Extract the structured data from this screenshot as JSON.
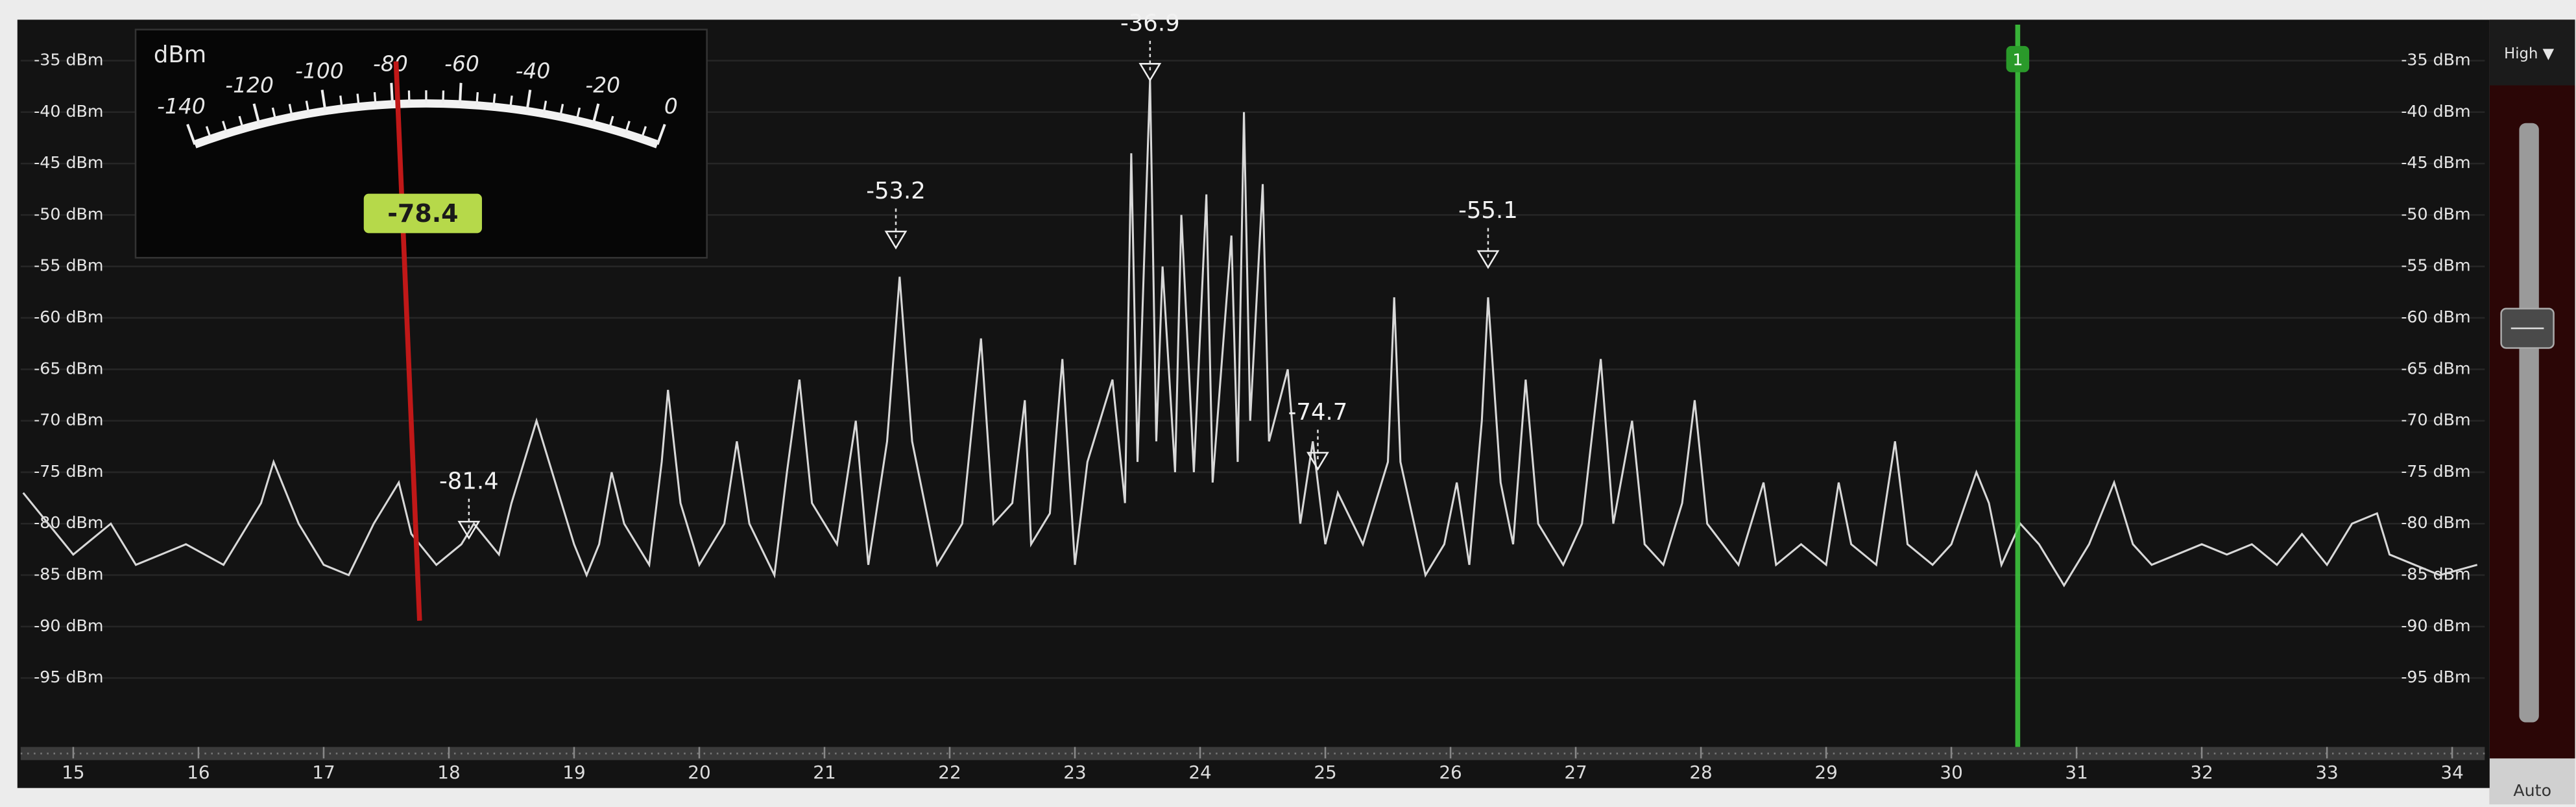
{
  "chart_data": {
    "type": "line",
    "xlim": [
      14.58,
      34.26
    ],
    "ylim": [
      -101.7,
      -31.5
    ],
    "xticks": [
      15,
      16,
      17,
      18,
      19,
      20,
      21,
      22,
      23,
      24,
      25,
      26,
      27,
      28,
      29,
      30,
      31,
      32,
      33,
      34
    ],
    "yticks": [
      {
        "value": -35,
        "label": "-35 dBm"
      },
      {
        "value": -40,
        "label": "-40 dBm"
      },
      {
        "value": -45,
        "label": "-45 dBm"
      },
      {
        "value": -50,
        "label": "-50 dBm"
      },
      {
        "value": -55,
        "label": "-55 dBm"
      },
      {
        "value": -60,
        "label": "-60 dBm"
      },
      {
        "value": -65,
        "label": "-65 dBm"
      },
      {
        "value": -70,
        "label": "-70 dBm"
      },
      {
        "value": -75,
        "label": "-75 dBm"
      },
      {
        "value": -80,
        "label": "-80 dBm"
      },
      {
        "value": -85,
        "label": "-85 dBm"
      },
      {
        "value": -90,
        "label": "-90 dBm"
      },
      {
        "value": -95,
        "label": "-95 dBm"
      }
    ],
    "grid": true,
    "color": "#d8d8d8",
    "x": [
      14.6,
      15,
      15.3,
      15.5,
      15.9,
      16.2,
      16.5,
      16.6,
      16.8,
      17,
      17.2,
      17.4,
      17.5,
      17.6,
      17.7,
      17.9,
      18.1,
      18.2,
      18.4,
      18.5,
      18.7,
      18.8,
      19,
      19.1,
      19.2,
      19.3,
      19.4,
      19.6,
      19.7,
      19.75,
      19.85,
      20,
      20.2,
      20.3,
      20.4,
      20.6,
      20.7,
      20.8,
      20.9,
      21.1,
      21.25,
      21.35,
      21.5,
      21.6,
      21.7,
      21.9,
      22.1,
      22.25,
      22.35,
      22.5,
      22.6,
      22.65,
      22.8,
      22.9,
      23,
      23.1,
      23.2,
      23.3,
      23.4,
      23.45,
      23.5,
      23.6,
      23.65,
      23.7,
      23.8,
      23.85,
      23.95,
      24.05,
      24.1,
      24.25,
      24.3,
      24.35,
      24.4,
      24.5,
      24.55,
      24.7,
      24.8,
      24.9,
      25,
      25.1,
      25.3,
      25.5,
      25.55,
      25.6,
      25.8,
      25.95,
      26.05,
      26.15,
      26.25,
      26.3,
      26.4,
      26.5,
      26.6,
      26.7,
      26.9,
      27.05,
      27.2,
      27.3,
      27.45,
      27.55,
      27.7,
      27.85,
      27.95,
      28.05,
      28.3,
      28.5,
      28.6,
      28.8,
      29,
      29.1,
      29.2,
      29.4,
      29.55,
      29.65,
      29.85,
      30,
      30.2,
      30.3,
      30.4,
      30.55,
      30.7,
      30.9,
      31.1,
      31.3,
      31.45,
      31.6,
      31.8,
      32,
      32.2,
      32.4,
      32.6,
      32.8,
      33,
      33.2,
      33.4,
      33.5,
      33.7,
      33.9,
      34.2
    ],
    "values": [
      -77,
      -83,
      -80,
      -84,
      -82,
      -84,
      -78,
      -74,
      -80,
      -84,
      -85,
      -80,
      -78,
      -76,
      -81,
      -84,
      -82,
      -80,
      -83,
      -78,
      -70,
      -74,
      -82,
      -85,
      -82,
      -75,
      -80,
      -84,
      -74,
      -67,
      -78,
      -84,
      -80,
      -72,
      -80,
      -85,
      -75,
      -66,
      -78,
      -82,
      -70,
      -84,
      -72,
      -56,
      -72,
      -84,
      -80,
      -62,
      -80,
      -78,
      -68,
      -82,
      -79,
      -64,
      -84,
      -74,
      -70,
      -66,
      -78,
      -44,
      -74,
      -36.9,
      -72,
      -55,
      -75,
      -50,
      -75,
      -48,
      -76,
      -52,
      -74,
      -40,
      -70,
      -47,
      -72,
      -65,
      -80,
      -72,
      -82,
      -77,
      -82,
      -74,
      -58,
      -74,
      -85,
      -82,
      -76,
      -84,
      -70,
      -58,
      -76,
      -82,
      -66,
      -80,
      -84,
      -80,
      -64,
      -80,
      -70,
      -82,
      -84,
      -78,
      -68,
      -80,
      -84,
      -76,
      -84,
      -82,
      -84,
      -76,
      -82,
      -84,
      -72,
      -82,
      -84,
      -82,
      -75,
      -78,
      -84,
      -80,
      -82,
      -86,
      -82,
      -76,
      -82,
      -84,
      -83,
      -82,
      -83,
      -82,
      -84,
      -81,
      -84,
      -80,
      -79,
      -83,
      -84,
      -85,
      -84
    ],
    "markers": [
      {
        "x": 23.6,
        "value": -36.9
      },
      {
        "x": 21.57,
        "value": -53.2
      },
      {
        "x": 26.3,
        "value": -55.1
      },
      {
        "x": 24.94,
        "value": -74.7
      },
      {
        "x": 18.16,
        "value": -81.4
      }
    ],
    "cursor": {
      "x": 30.53,
      "label": "1"
    }
  },
  "meter": {
    "unit": "dBm",
    "lim": [
      -140,
      0
    ],
    "ticks": [
      -140,
      -120,
      -100,
      -80,
      -60,
      -40,
      -20,
      0
    ],
    "value": -78.4
  },
  "panel": {
    "top": "High ▼",
    "bottom": "Auto"
  }
}
